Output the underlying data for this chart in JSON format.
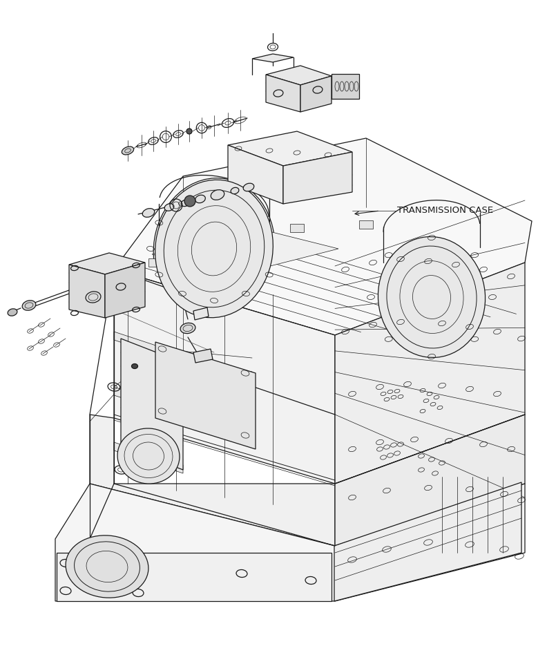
{
  "background_color": "#ffffff",
  "label_transmission": "TRANSMISSION CASE",
  "label_fontsize": 9.5,
  "figsize": [
    7.92,
    9.61
  ],
  "dpi": 100,
  "line_color": "#1a1a1a",
  "line_color_mid": "#333333"
}
